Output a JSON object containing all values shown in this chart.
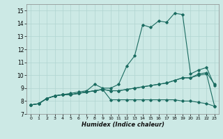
{
  "title": "",
  "xlabel": "Humidex (Indice chaleur)",
  "ylabel": "",
  "background_color": "#cce9e5",
  "grid_color": "#b0d4d0",
  "line_color": "#1a6b60",
  "xlim": [
    -0.5,
    23.5
  ],
  "ylim": [
    7,
    15.5
  ],
  "yticks": [
    7,
    8,
    9,
    10,
    11,
    12,
    13,
    14,
    15
  ],
  "xticks": [
    0,
    1,
    2,
    3,
    4,
    5,
    6,
    7,
    8,
    9,
    10,
    11,
    12,
    13,
    14,
    15,
    16,
    17,
    18,
    19,
    20,
    21,
    22,
    23
  ],
  "lines": [
    [
      7.7,
      7.8,
      8.2,
      8.4,
      8.5,
      8.6,
      8.7,
      8.8,
      9.3,
      9.0,
      9.0,
      9.3,
      10.7,
      11.5,
      13.9,
      13.7,
      14.2,
      14.1,
      14.8,
      14.7,
      10.1,
      10.4,
      10.6,
      9.2
    ],
    [
      7.7,
      7.8,
      8.2,
      8.4,
      8.5,
      8.5,
      8.6,
      8.7,
      8.8,
      8.9,
      8.8,
      8.8,
      8.9,
      9.0,
      9.1,
      9.2,
      9.3,
      9.4,
      9.6,
      9.8,
      9.8,
      10.0,
      10.1,
      7.6
    ],
    [
      7.7,
      7.8,
      8.2,
      8.4,
      8.5,
      8.5,
      8.6,
      8.7,
      8.8,
      8.9,
      8.8,
      8.8,
      8.9,
      9.0,
      9.1,
      9.2,
      9.3,
      9.4,
      9.6,
      9.8,
      9.8,
      10.1,
      10.2,
      9.3
    ],
    [
      7.7,
      7.8,
      8.2,
      8.4,
      8.5,
      8.5,
      8.6,
      8.7,
      8.8,
      8.9,
      8.1,
      8.1,
      8.1,
      8.1,
      8.1,
      8.1,
      8.1,
      8.1,
      8.1,
      8.0,
      8.0,
      7.9,
      7.8,
      7.6
    ]
  ]
}
